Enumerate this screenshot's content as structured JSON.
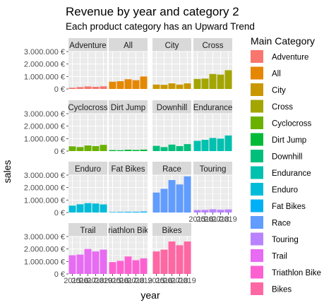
{
  "chart_data": {
    "type": "bar",
    "title": "Revenue by year and category 2",
    "subtitle": "Each product category has an Upward Trend",
    "xlabel": "year",
    "ylabel": "sales",
    "x": [
      2015,
      2016,
      2017,
      2018,
      2019
    ],
    "x_tick_labels": [
      "2015",
      "2016",
      "2017",
      "2018",
      "2019"
    ],
    "ylim": [
      0,
      3000000
    ],
    "y_ticks": [
      0,
      1000000,
      2000000,
      3000000
    ],
    "y_tick_labels": [
      "0 €",
      "1.000.000 €",
      "2.000.000 €",
      "3.000.000 €"
    ],
    "facet_layout": "wrap-4-columns",
    "grid": true,
    "legend_title": "Main Category",
    "legend_position": "right",
    "panels": [
      {
        "name": "Adventure",
        "color": "#F8766D",
        "values": [
          100000,
          150000,
          200000,
          170000,
          210000
        ]
      },
      {
        "name": "All",
        "color": "#E58700",
        "values": [
          580000,
          620000,
          780000,
          700000,
          1000000
        ]
      },
      {
        "name": "City",
        "color": "#C99800",
        "values": [
          350000,
          330000,
          450000,
          350000,
          450000
        ]
      },
      {
        "name": "Cross",
        "color": "#A3A500",
        "values": [
          800000,
          830000,
          1200000,
          1150000,
          1500000
        ]
      },
      {
        "name": "Cyclocross",
        "color": "#6BB100",
        "values": [
          380000,
          320000,
          450000,
          400000,
          500000
        ]
      },
      {
        "name": "Dirt Jump",
        "color": "#00BA38",
        "values": [
          80000,
          70000,
          110000,
          90000,
          120000
        ]
      },
      {
        "name": "Downhill",
        "color": "#00BF7D",
        "values": [
          420000,
          320000,
          520000,
          400000,
          560000
        ]
      },
      {
        "name": "Endurance",
        "color": "#00C0AF",
        "values": [
          820000,
          900000,
          1050000,
          1000000,
          1250000
        ]
      },
      {
        "name": "Enduro",
        "color": "#00BCD8",
        "values": [
          550000,
          660000,
          750000,
          720000,
          650000
        ]
      },
      {
        "name": "Fat Bikes",
        "color": "#00B0F6",
        "values": [
          40000,
          50000,
          60000,
          60000,
          80000
        ]
      },
      {
        "name": "Race",
        "color": "#619CFF",
        "values": [
          1600000,
          1900000,
          2600000,
          2250000,
          2900000
        ]
      },
      {
        "name": "Touring",
        "color": "#B983FF",
        "values": [
          200000,
          210000,
          260000,
          220000,
          250000
        ]
      },
      {
        "name": "Trail",
        "color": "#E76BF3",
        "values": [
          1500000,
          1550000,
          2000000,
          1800000,
          1950000
        ]
      },
      {
        "name": "Triathlon Bike",
        "color": "#FD61D1",
        "values": [
          950000,
          1050000,
          1400000,
          1100000,
          1250000
        ]
      },
      {
        "name": "Bikes",
        "color": "#FF67A4",
        "values": [
          1800000,
          1950000,
          2600000,
          2300000,
          2600000
        ]
      }
    ]
  }
}
